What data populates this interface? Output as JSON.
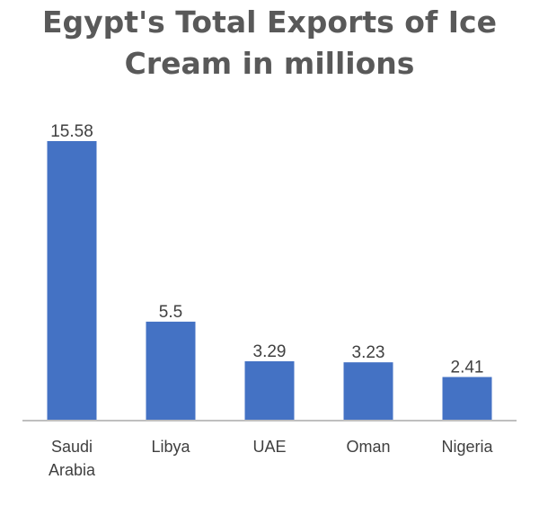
{
  "chart_data": {
    "type": "bar",
    "title_lines": [
      "Egypt's Total Exports of Ice",
      "Cream in millions"
    ],
    "categories": [
      [
        "Saudi",
        "Arabia"
      ],
      [
        "Libya"
      ],
      [
        "UAE"
      ],
      [
        "Oman"
      ],
      [
        "Nigeria"
      ]
    ],
    "values": [
      15.58,
      5.5,
      3.29,
      3.23,
      2.41
    ],
    "value_labels": [
      "15.58",
      "5.5",
      "3.29",
      "3.23",
      "2.41"
    ],
    "ylim": [
      0,
      15.58
    ],
    "grid": false,
    "legend": "none",
    "bar_color": "#4472C4",
    "axis_color": "#BFBFBF"
  }
}
